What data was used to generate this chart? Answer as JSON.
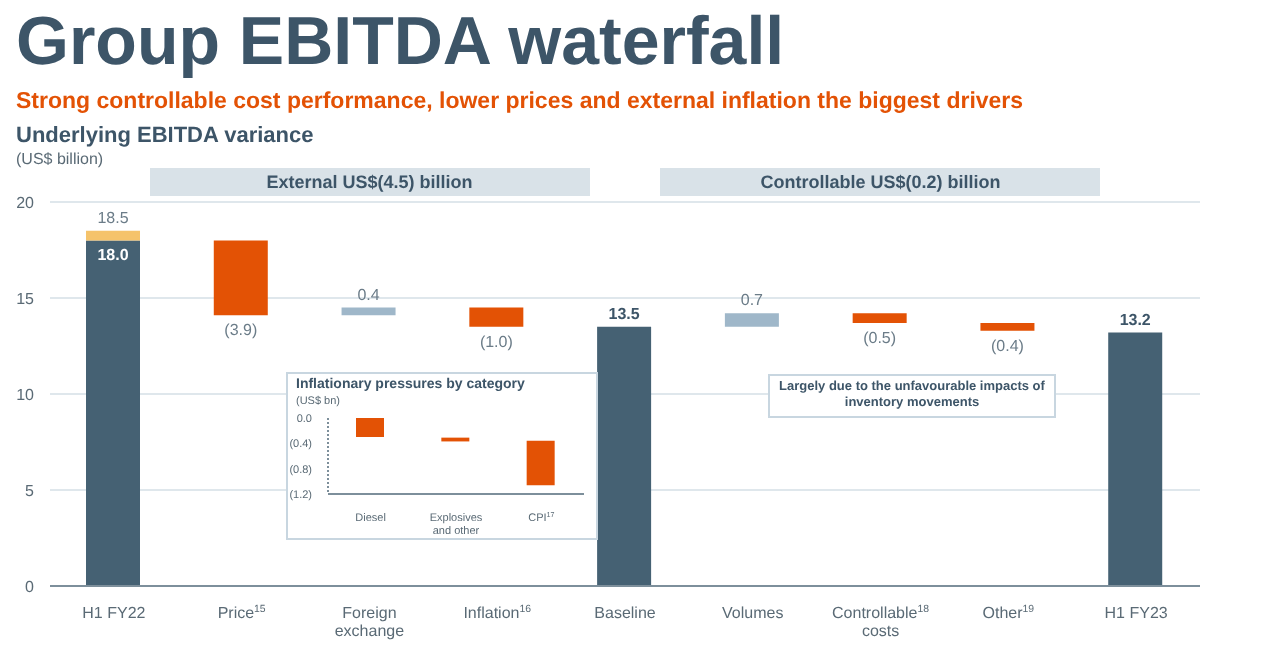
{
  "chart_data": [
    {
      "type": "bar",
      "title": "Group EBITDA waterfall",
      "subtitle": "Strong controllable cost performance, lower prices and external inflation the biggest drivers",
      "ylabel": "(US$ billion)",
      "annotations": [
        "Underlying EBITDA variance",
        "External US$(4.5) billion",
        "Controllable US$(0.2) billion",
        "Largely due to the unfavourable impacts of inventory movements"
      ],
      "categories": [
        "H1 FY22",
        "Price$^{15}$",
        "Foreign exchange",
        "Inflation$^{16}$",
        "Baseline",
        "Volumes",
        "Controllable$^{18}$ costs",
        "Other$^{19}$",
        "H1 FY23"
      ],
      "series": [
        {
          "colors": [
            "#456173",
            "#e35205",
            "#9fb7c9",
            "#e35205",
            "#456173",
            "#9fb7c9",
            "#e35205",
            "#e35205",
            "#456173"
          ],
          "values": [
            18.0,
            -3.9,
            0.4,
            -1.0,
            13.5,
            0.7,
            -0.5,
            -0.4,
            13.2
          ],
          "base": [
            0,
            18.0,
            14.1,
            14.5,
            0,
            13.5,
            14.2,
            13.7,
            0
          ],
          "value_labels": [
            "18.0",
            "(3.9)",
            "0.4",
            "(1.0)",
            "13.5",
            "0.7",
            "(0.5)",
            "(0.4)",
            "13.2"
          ]
        },
        {
          "color": "#f5c36b",
          "values": [
            0.5,
            null,
            null,
            null,
            null,
            null,
            null,
            null,
            null
          ],
          "base": [
            18.0,
            null,
            null,
            null,
            null,
            null,
            null,
            null,
            null
          ],
          "value_labels": [
            "18.5",
            null,
            null,
            null,
            null,
            null,
            null,
            null,
            null
          ]
        }
      ],
      "ylim": [
        0,
        20
      ],
      "yticks": [
        0,
        5,
        10,
        15,
        20
      ],
      "grid": "y"
    },
    {
      "type": "bar",
      "title": "Inflationary pressures by category",
      "ylabel": "(US$ bn)",
      "categories": [
        "Diesel",
        "Explosives and other",
        "CPI$^{17}$"
      ],
      "series": [
        {
          "color": "#e35205",
          "values": [
            -0.3,
            -0.06,
            -0.7
          ],
          "base": [
            0,
            -0.31,
            -0.36
          ]
        }
      ],
      "ylim": [
        -1.2,
        0
      ],
      "yticks": [
        {
          "value": 0,
          "label": "0.0"
        },
        {
          "value": -0.4,
          "label": "(0.4)"
        },
        {
          "value": -0.8,
          "label": "(0.8)"
        },
        {
          "value": -1.2,
          "label": "(1.2)"
        }
      ]
    }
  ]
}
